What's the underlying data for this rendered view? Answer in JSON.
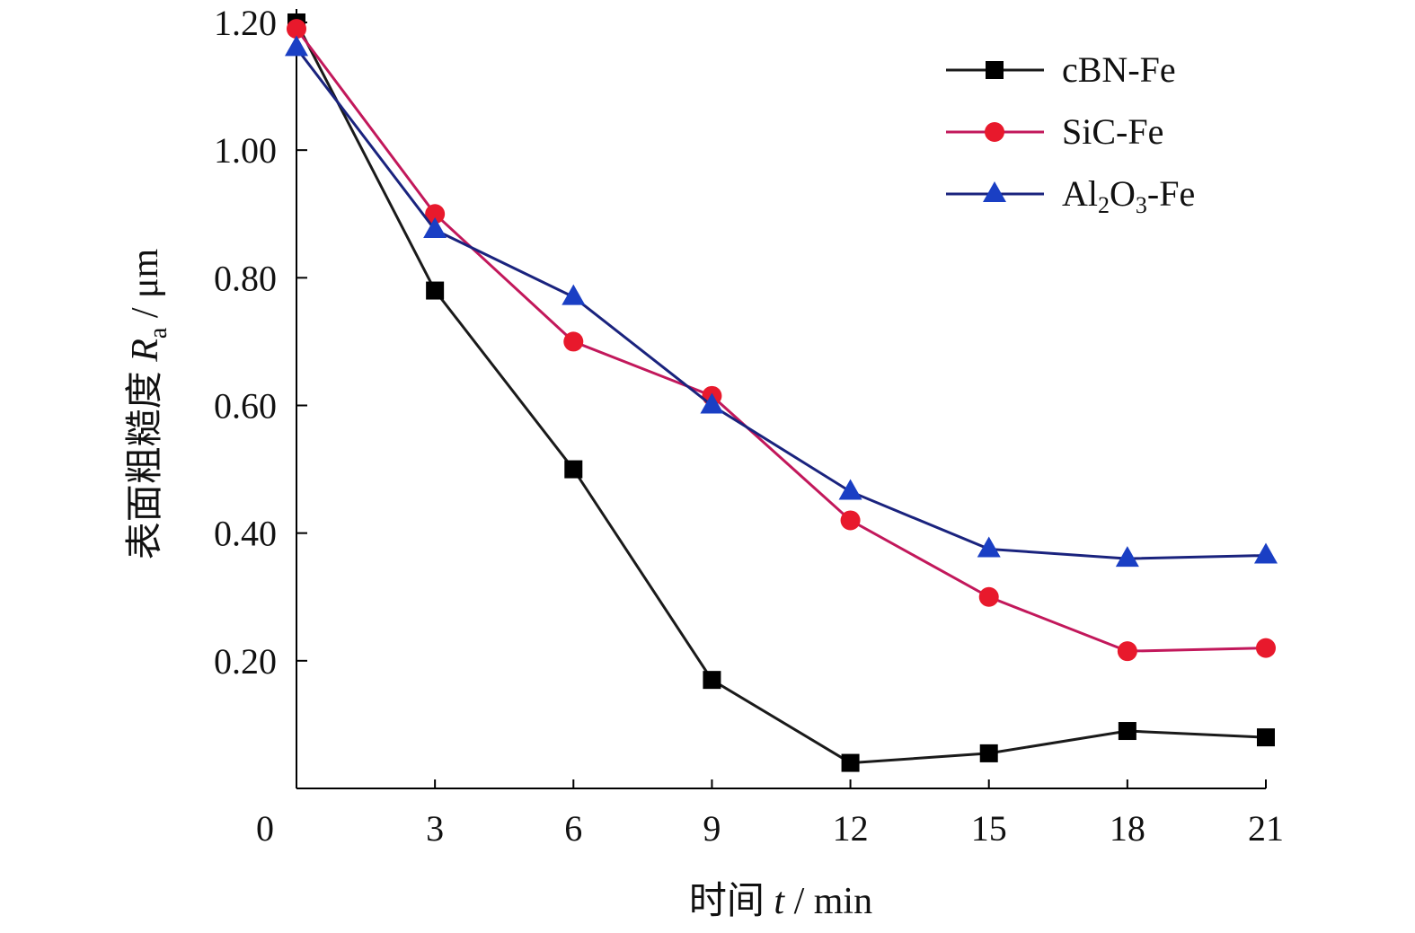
{
  "chart_data": {
    "type": "line",
    "x": [
      0,
      3,
      6,
      9,
      12,
      15,
      18,
      21
    ],
    "xticks": [
      "0",
      "3",
      "6",
      "9",
      "12",
      "15",
      "18",
      "21"
    ],
    "yticks": [
      "0.20",
      "0.40",
      "0.60",
      "0.80",
      "1.00",
      "1.20"
    ],
    "xlim": [
      0,
      21
    ],
    "ylim": [
      0,
      1.2
    ],
    "xlabel": {
      "prefix": "时间 ",
      "var": "t",
      "unit": " / min"
    },
    "ylabel": {
      "prefix": "表面粗糙度 ",
      "var": "R",
      "sub": "a",
      "unit": " / μm"
    },
    "legend_position": "top-right",
    "grid": false,
    "series": [
      {
        "name": "cBN-Fe",
        "legend": {
          "base": "cBN-Fe"
        },
        "marker": "square",
        "color": "#000000",
        "line_color": "#1a1a1a",
        "values": [
          1.2,
          0.78,
          0.5,
          0.17,
          0.04,
          0.055,
          0.09,
          0.08
        ]
      },
      {
        "name": "SiC-Fe",
        "legend": {
          "base": "SiC-Fe"
        },
        "marker": "circle",
        "color": "#e8192c",
        "line_color": "#c2185b",
        "values": [
          1.19,
          0.9,
          0.7,
          0.615,
          0.42,
          0.3,
          0.215,
          0.22
        ]
      },
      {
        "name": "Al2O3-Fe",
        "legend": {
          "base": "Al",
          "sub1": "2",
          "mid": "O",
          "sub2": "3",
          "tail": "-Fe"
        },
        "marker": "triangle",
        "color": "#1a3fc4",
        "line_color": "#1a237e",
        "values": [
          1.16,
          0.875,
          0.77,
          0.6,
          0.465,
          0.375,
          0.36,
          0.365
        ]
      }
    ]
  }
}
